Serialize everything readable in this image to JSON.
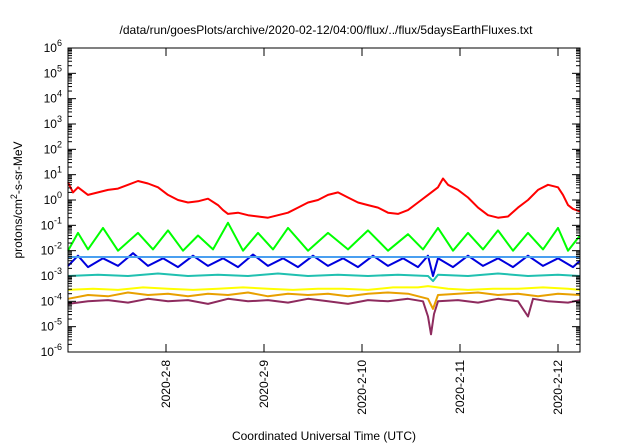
{
  "chart_data": {
    "type": "line",
    "title": "/data/run/goesPlots/archive/2020-02-12/04:00/flux/../flux/5daysEarthFluxes.txt",
    "xlabel": "Coordinated Universal Time (UTC)",
    "ylabel": {
      "pre": "protons/cm",
      "sup": "2",
      "post": "-s-sr-MeV"
    },
    "yscale": "log",
    "ylim": [
      1e-06,
      1000000.0
    ],
    "y_tick_exponents": [
      -6,
      -5,
      -4,
      -3,
      -2,
      -1,
      0,
      1,
      2,
      3,
      4,
      5,
      6
    ],
    "y_tick_base": "10",
    "xlim_days": [
      0,
      5.12
    ],
    "x_ticks": [
      {
        "label": "2020-2-8",
        "day": 0.98
      },
      {
        "label": "2020-2-9",
        "day": 1.96
      },
      {
        "label": "2020-2-10",
        "day": 2.94
      },
      {
        "label": "2020-2-11",
        "day": 3.92
      },
      {
        "label": "2020-2-12",
        "day": 4.9
      }
    ],
    "grid": false,
    "legend": "none",
    "series": [
      {
        "color": "#8e2b5e",
        "points": [
          [
            0,
            -4.1
          ],
          [
            0.2,
            -4.0
          ],
          [
            0.4,
            -3.95
          ],
          [
            0.6,
            -4.05
          ],
          [
            0.8,
            -3.9
          ],
          [
            1.0,
            -4.0
          ],
          [
            1.2,
            -3.95
          ],
          [
            1.4,
            -4.1
          ],
          [
            1.6,
            -3.9
          ],
          [
            1.8,
            -4.0
          ],
          [
            2.0,
            -3.95
          ],
          [
            2.2,
            -4.05
          ],
          [
            2.4,
            -3.9
          ],
          [
            2.6,
            -4.0
          ],
          [
            2.8,
            -4.1
          ],
          [
            3.0,
            -3.95
          ],
          [
            3.2,
            -4.0
          ],
          [
            3.4,
            -3.9
          ],
          [
            3.55,
            -4.0
          ],
          [
            3.6,
            -4.6
          ],
          [
            3.63,
            -5.3
          ],
          [
            3.66,
            -4.5
          ],
          [
            3.7,
            -4.0
          ],
          [
            3.9,
            -3.95
          ],
          [
            4.1,
            -4.05
          ],
          [
            4.3,
            -3.9
          ],
          [
            4.5,
            -4.0
          ],
          [
            4.6,
            -4.6
          ],
          [
            4.65,
            -3.9
          ],
          [
            4.8,
            -4.0
          ],
          [
            5.0,
            -4.05
          ],
          [
            5.12,
            -3.95
          ]
        ]
      },
      {
        "color": "#e8a000",
        "points": [
          [
            0,
            -3.9
          ],
          [
            0.2,
            -3.75
          ],
          [
            0.4,
            -3.8
          ],
          [
            0.6,
            -3.65
          ],
          [
            0.8,
            -3.75
          ],
          [
            1.0,
            -3.7
          ],
          [
            1.2,
            -3.8
          ],
          [
            1.4,
            -3.7
          ],
          [
            1.6,
            -3.75
          ],
          [
            1.8,
            -3.65
          ],
          [
            2.0,
            -3.8
          ],
          [
            2.2,
            -3.7
          ],
          [
            2.4,
            -3.75
          ],
          [
            2.6,
            -3.7
          ],
          [
            2.8,
            -3.8
          ],
          [
            3.0,
            -3.7
          ],
          [
            3.2,
            -3.65
          ],
          [
            3.4,
            -3.7
          ],
          [
            3.6,
            -3.9
          ],
          [
            3.65,
            -4.3
          ],
          [
            3.7,
            -3.75
          ],
          [
            3.9,
            -3.7
          ],
          [
            4.1,
            -3.65
          ],
          [
            4.3,
            -3.75
          ],
          [
            4.5,
            -3.7
          ],
          [
            4.7,
            -3.8
          ],
          [
            4.9,
            -3.7
          ],
          [
            5.12,
            -3.75
          ]
        ]
      },
      {
        "color": "#ffff00",
        "points": [
          [
            0,
            -3.55
          ],
          [
            0.25,
            -3.5
          ],
          [
            0.5,
            -3.55
          ],
          [
            0.75,
            -3.45
          ],
          [
            1.0,
            -3.5
          ],
          [
            1.25,
            -3.55
          ],
          [
            1.5,
            -3.5
          ],
          [
            1.75,
            -3.45
          ],
          [
            2.0,
            -3.5
          ],
          [
            2.25,
            -3.55
          ],
          [
            2.5,
            -3.5
          ],
          [
            2.75,
            -3.5
          ],
          [
            3.0,
            -3.55
          ],
          [
            3.25,
            -3.45
          ],
          [
            3.5,
            -3.45
          ],
          [
            3.6,
            -3.4
          ],
          [
            3.8,
            -3.5
          ],
          [
            4.0,
            -3.55
          ],
          [
            4.25,
            -3.5
          ],
          [
            4.5,
            -3.5
          ],
          [
            4.75,
            -3.45
          ],
          [
            5.0,
            -3.5
          ],
          [
            5.12,
            -3.55
          ]
        ]
      },
      {
        "color": "#20c0b0",
        "points": [
          [
            0,
            -3.0
          ],
          [
            0.3,
            -2.95
          ],
          [
            0.6,
            -3.0
          ],
          [
            0.9,
            -2.9
          ],
          [
            1.2,
            -3.0
          ],
          [
            1.5,
            -2.95
          ],
          [
            1.8,
            -3.0
          ],
          [
            2.1,
            -2.9
          ],
          [
            2.4,
            -3.0
          ],
          [
            2.7,
            -2.95
          ],
          [
            3.0,
            -3.0
          ],
          [
            3.3,
            -2.95
          ],
          [
            3.6,
            -3.0
          ],
          [
            3.65,
            -3.2
          ],
          [
            3.7,
            -2.95
          ],
          [
            4.0,
            -3.0
          ],
          [
            4.3,
            -2.9
          ],
          [
            4.6,
            -3.0
          ],
          [
            4.9,
            -2.95
          ],
          [
            5.12,
            -3.0
          ]
        ]
      },
      {
        "color": "#00ff00",
        "points": [
          [
            0,
            -2.0
          ],
          [
            0.1,
            -1.3
          ],
          [
            0.2,
            -1.95
          ],
          [
            0.35,
            -1.1
          ],
          [
            0.5,
            -2.0
          ],
          [
            0.7,
            -1.3
          ],
          [
            0.85,
            -1.95
          ],
          [
            1.0,
            -1.2
          ],
          [
            1.15,
            -2.0
          ],
          [
            1.3,
            -1.4
          ],
          [
            1.45,
            -1.95
          ],
          [
            1.6,
            -0.9
          ],
          [
            1.75,
            -2.0
          ],
          [
            1.9,
            -1.3
          ],
          [
            2.05,
            -1.95
          ],
          [
            2.2,
            -1.1
          ],
          [
            2.4,
            -2.0
          ],
          [
            2.6,
            -1.3
          ],
          [
            2.8,
            -1.95
          ],
          [
            3.0,
            -1.2
          ],
          [
            3.2,
            -2.0
          ],
          [
            3.4,
            -1.35
          ],
          [
            3.55,
            -1.95
          ],
          [
            3.7,
            -1.1
          ],
          [
            3.85,
            -2.0
          ],
          [
            4.0,
            -1.3
          ],
          [
            4.15,
            -1.95
          ],
          [
            4.3,
            -1.2
          ],
          [
            4.45,
            -2.0
          ],
          [
            4.6,
            -1.3
          ],
          [
            4.75,
            -1.95
          ],
          [
            4.9,
            -1.1
          ],
          [
            5.0,
            -2.0
          ],
          [
            5.12,
            -1.4
          ]
        ]
      },
      {
        "color": "#0000dd",
        "points": [
          [
            0,
            -2.6
          ],
          [
            0.1,
            -2.2
          ],
          [
            0.2,
            -2.65
          ],
          [
            0.35,
            -2.3
          ],
          [
            0.5,
            -2.6
          ],
          [
            0.65,
            -2.1
          ],
          [
            0.8,
            -2.6
          ],
          [
            0.95,
            -2.3
          ],
          [
            1.1,
            -2.65
          ],
          [
            1.25,
            -2.2
          ],
          [
            1.4,
            -2.6
          ],
          [
            1.55,
            -2.3
          ],
          [
            1.7,
            -2.65
          ],
          [
            1.85,
            -2.15
          ],
          [
            2.0,
            -2.6
          ],
          [
            2.15,
            -2.3
          ],
          [
            2.3,
            -2.65
          ],
          [
            2.45,
            -2.2
          ],
          [
            2.6,
            -2.6
          ],
          [
            2.75,
            -2.3
          ],
          [
            2.9,
            -2.65
          ],
          [
            3.05,
            -2.2
          ],
          [
            3.2,
            -2.6
          ],
          [
            3.35,
            -2.3
          ],
          [
            3.5,
            -2.65
          ],
          [
            3.6,
            -2.2
          ],
          [
            3.65,
            -3.0
          ],
          [
            3.7,
            -2.3
          ],
          [
            3.85,
            -2.65
          ],
          [
            4.0,
            -2.2
          ],
          [
            4.15,
            -2.6
          ],
          [
            4.3,
            -2.3
          ],
          [
            4.45,
            -2.65
          ],
          [
            4.6,
            -2.2
          ],
          [
            4.75,
            -2.6
          ],
          [
            4.9,
            -2.3
          ],
          [
            5.05,
            -2.65
          ],
          [
            5.12,
            -2.4
          ]
        ]
      },
      {
        "color": "#4a9ff0",
        "points": [
          [
            0,
            -2.25
          ],
          [
            0.5,
            -2.25
          ],
          [
            1.0,
            -2.25
          ],
          [
            1.5,
            -2.25
          ],
          [
            2.0,
            -2.25
          ],
          [
            2.5,
            -2.25
          ],
          [
            3.0,
            -2.25
          ],
          [
            3.5,
            -2.25
          ],
          [
            4.0,
            -2.25
          ],
          [
            4.5,
            -2.25
          ],
          [
            5.12,
            -2.25
          ]
        ]
      },
      {
        "color": "#ff0000",
        "points": [
          [
            0,
            0.7
          ],
          [
            0.05,
            0.3
          ],
          [
            0.1,
            0.5
          ],
          [
            0.2,
            0.2
          ],
          [
            0.3,
            0.3
          ],
          [
            0.4,
            0.4
          ],
          [
            0.5,
            0.45
          ],
          [
            0.6,
            0.6
          ],
          [
            0.7,
            0.75
          ],
          [
            0.8,
            0.65
          ],
          [
            0.9,
            0.5
          ],
          [
            1.0,
            0.2
          ],
          [
            1.1,
            0.0
          ],
          [
            1.2,
            -0.1
          ],
          [
            1.3,
            -0.05
          ],
          [
            1.4,
            0.05
          ],
          [
            1.5,
            -0.2
          ],
          [
            1.55,
            -0.4
          ],
          [
            1.6,
            -0.55
          ],
          [
            1.7,
            -0.5
          ],
          [
            1.8,
            -0.6
          ],
          [
            1.9,
            -0.65
          ],
          [
            2.0,
            -0.7
          ],
          [
            2.1,
            -0.6
          ],
          [
            2.2,
            -0.5
          ],
          [
            2.3,
            -0.3
          ],
          [
            2.4,
            -0.1
          ],
          [
            2.5,
            0.0
          ],
          [
            2.6,
            0.2
          ],
          [
            2.7,
            0.3
          ],
          [
            2.8,
            0.1
          ],
          [
            2.9,
            -0.1
          ],
          [
            3.0,
            -0.2
          ],
          [
            3.1,
            -0.3
          ],
          [
            3.2,
            -0.5
          ],
          [
            3.3,
            -0.55
          ],
          [
            3.4,
            -0.4
          ],
          [
            3.5,
            -0.1
          ],
          [
            3.6,
            0.2
          ],
          [
            3.7,
            0.5
          ],
          [
            3.75,
            0.85
          ],
          [
            3.8,
            0.6
          ],
          [
            3.9,
            0.4
          ],
          [
            4.0,
            0.1
          ],
          [
            4.1,
            -0.3
          ],
          [
            4.2,
            -0.6
          ],
          [
            4.3,
            -0.7
          ],
          [
            4.4,
            -0.65
          ],
          [
            4.5,
            -0.3
          ],
          [
            4.6,
            0.0
          ],
          [
            4.7,
            0.4
          ],
          [
            4.8,
            0.6
          ],
          [
            4.9,
            0.5
          ],
          [
            4.95,
            0.2
          ],
          [
            5.0,
            -0.2
          ],
          [
            5.05,
            -0.35
          ],
          [
            5.12,
            -0.45
          ]
        ]
      }
    ]
  }
}
